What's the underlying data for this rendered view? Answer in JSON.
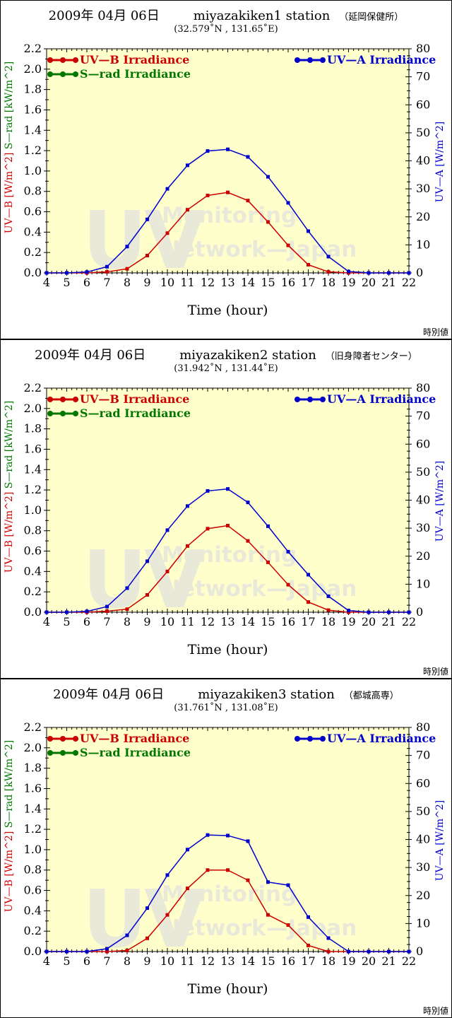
{
  "page": {
    "footer_note": "時別値"
  },
  "watermark": {
    "big": "UV",
    "line1": "Monitoring",
    "line2": "Network—Japan",
    "color": "#e9e9da"
  },
  "colors": {
    "uvb": "#cc0000",
    "srad": "#007700",
    "uva": "#0000cc",
    "plot_bg": "#ffffcc",
    "frame": "#000000"
  },
  "axes": {
    "x": {
      "title": "Time (hour)",
      "min": 4,
      "max": 22,
      "major_step": 1,
      "minors_per_major": 3
    },
    "y_left": {
      "min": 0.0,
      "max": 2.2,
      "major_step": 0.2,
      "tick_decimals": 1,
      "labels": [
        {
          "text": "UV—B [W/m^2]",
          "color": "#cc0000"
        },
        {
          "text": "S—rad [kW/m^2]",
          "color": "#007700"
        }
      ]
    },
    "y_right": {
      "min": 0,
      "max": 80,
      "major_step": 10,
      "minors_per_major": 3,
      "label": {
        "text": "UV—A [W/m^2]",
        "color": "#0000cc"
      }
    }
  },
  "chart_data": [
    {
      "type": "line",
      "date": "2009年 04月 06日",
      "station": "miyazakiken1 station",
      "site": "（延岡保健所）",
      "coordinates": "(32.579˚N , 131.65˚E)",
      "xlabel": "Time (hour)",
      "x": [
        4,
        5,
        6,
        7,
        8,
        9,
        10,
        11,
        12,
        13,
        14,
        15,
        16,
        17,
        18,
        19,
        20,
        21,
        22
      ],
      "ylim_left": [
        0,
        2.2
      ],
      "ylim_right": [
        0,
        80
      ],
      "series": [
        {
          "name": "UV—B Irradiance",
          "axis": "left",
          "color": "#cc0000",
          "unit": "W/m^2",
          "values": [
            0,
            0,
            0,
            0.01,
            0.04,
            0.17,
            0.39,
            0.62,
            0.76,
            0.79,
            0.71,
            0.5,
            0.27,
            0.08,
            0.01,
            0,
            0,
            0,
            0
          ]
        },
        {
          "name": "S—rad Irradiance",
          "axis": "left",
          "color": "#007700",
          "unit": "kW/m^2",
          "values": []
        },
        {
          "name": "UV—A Irradiance",
          "axis": "right",
          "color": "#0000cc",
          "unit": "W/m^2",
          "values": [
            0,
            0,
            0.3,
            2.2,
            9.4,
            19.1,
            30.0,
            38.4,
            43.5,
            44.1,
            41.4,
            34.3,
            25.0,
            14.9,
            5.8,
            0.5,
            0,
            0,
            0
          ]
        }
      ]
    },
    {
      "type": "line",
      "date": "2009年 04月 06日",
      "station": "miyazakiken2 station",
      "site": "（旧身障者センター）",
      "coordinates": "(31.942˚N , 131.44˚E)",
      "xlabel": "Time (hour)",
      "x": [
        4,
        5,
        6,
        7,
        8,
        9,
        10,
        11,
        12,
        13,
        14,
        15,
        16,
        17,
        18,
        19,
        20,
        21,
        22
      ],
      "ylim_left": [
        0,
        2.2
      ],
      "ylim_right": [
        0,
        80
      ],
      "series": [
        {
          "name": "UV—B Irradiance",
          "axis": "left",
          "color": "#cc0000",
          "unit": "W/m^2",
          "values": [
            0,
            0,
            0,
            0.01,
            0.03,
            0.17,
            0.4,
            0.65,
            0.82,
            0.85,
            0.7,
            0.49,
            0.27,
            0.1,
            0.02,
            0,
            0,
            0,
            0
          ]
        },
        {
          "name": "S—rad Irradiance",
          "axis": "left",
          "color": "#007700",
          "unit": "kW/m^2",
          "values": []
        },
        {
          "name": "UV—A Irradiance",
          "axis": "right",
          "color": "#0000cc",
          "unit": "W/m^2",
          "values": [
            0,
            0,
            0.3,
            2.0,
            8.6,
            18.2,
            29.3,
            37.9,
            43.3,
            44.0,
            39.2,
            30.7,
            21.6,
            13.4,
            5.7,
            0.6,
            0,
            0,
            0
          ]
        }
      ]
    },
    {
      "type": "line",
      "date": "2009年 04月 06日",
      "station": "miyazakiken3 station",
      "site": "（都城高専）",
      "coordinates": "(31.761˚N , 131.08˚E)",
      "xlabel": "Time (hour)",
      "x": [
        4,
        5,
        6,
        7,
        8,
        9,
        10,
        11,
        12,
        13,
        14,
        15,
        16,
        17,
        18,
        19,
        20,
        21,
        22
      ],
      "ylim_left": [
        0,
        2.2
      ],
      "ylim_right": [
        0,
        80
      ],
      "series": [
        {
          "name": "UV—B Irradiance",
          "axis": "left",
          "color": "#cc0000",
          "unit": "W/m^2",
          "values": [
            0,
            0,
            0,
            0,
            0.01,
            0.13,
            0.36,
            0.62,
            0.8,
            0.8,
            0.7,
            0.36,
            0.26,
            0.06,
            0,
            0,
            0,
            0,
            0
          ]
        },
        {
          "name": "S—rad Irradiance",
          "axis": "left",
          "color": "#007700",
          "unit": "kW/m^2",
          "values": []
        },
        {
          "name": "UV—A Irradiance",
          "axis": "right",
          "color": "#0000cc",
          "unit": "W/m^2",
          "values": [
            0,
            0,
            0,
            1.0,
            5.8,
            15.5,
            27.3,
            36.4,
            41.6,
            41.4,
            39.4,
            24.8,
            23.7,
            12.3,
            4.8,
            0,
            0,
            0,
            0
          ]
        }
      ]
    }
  ]
}
